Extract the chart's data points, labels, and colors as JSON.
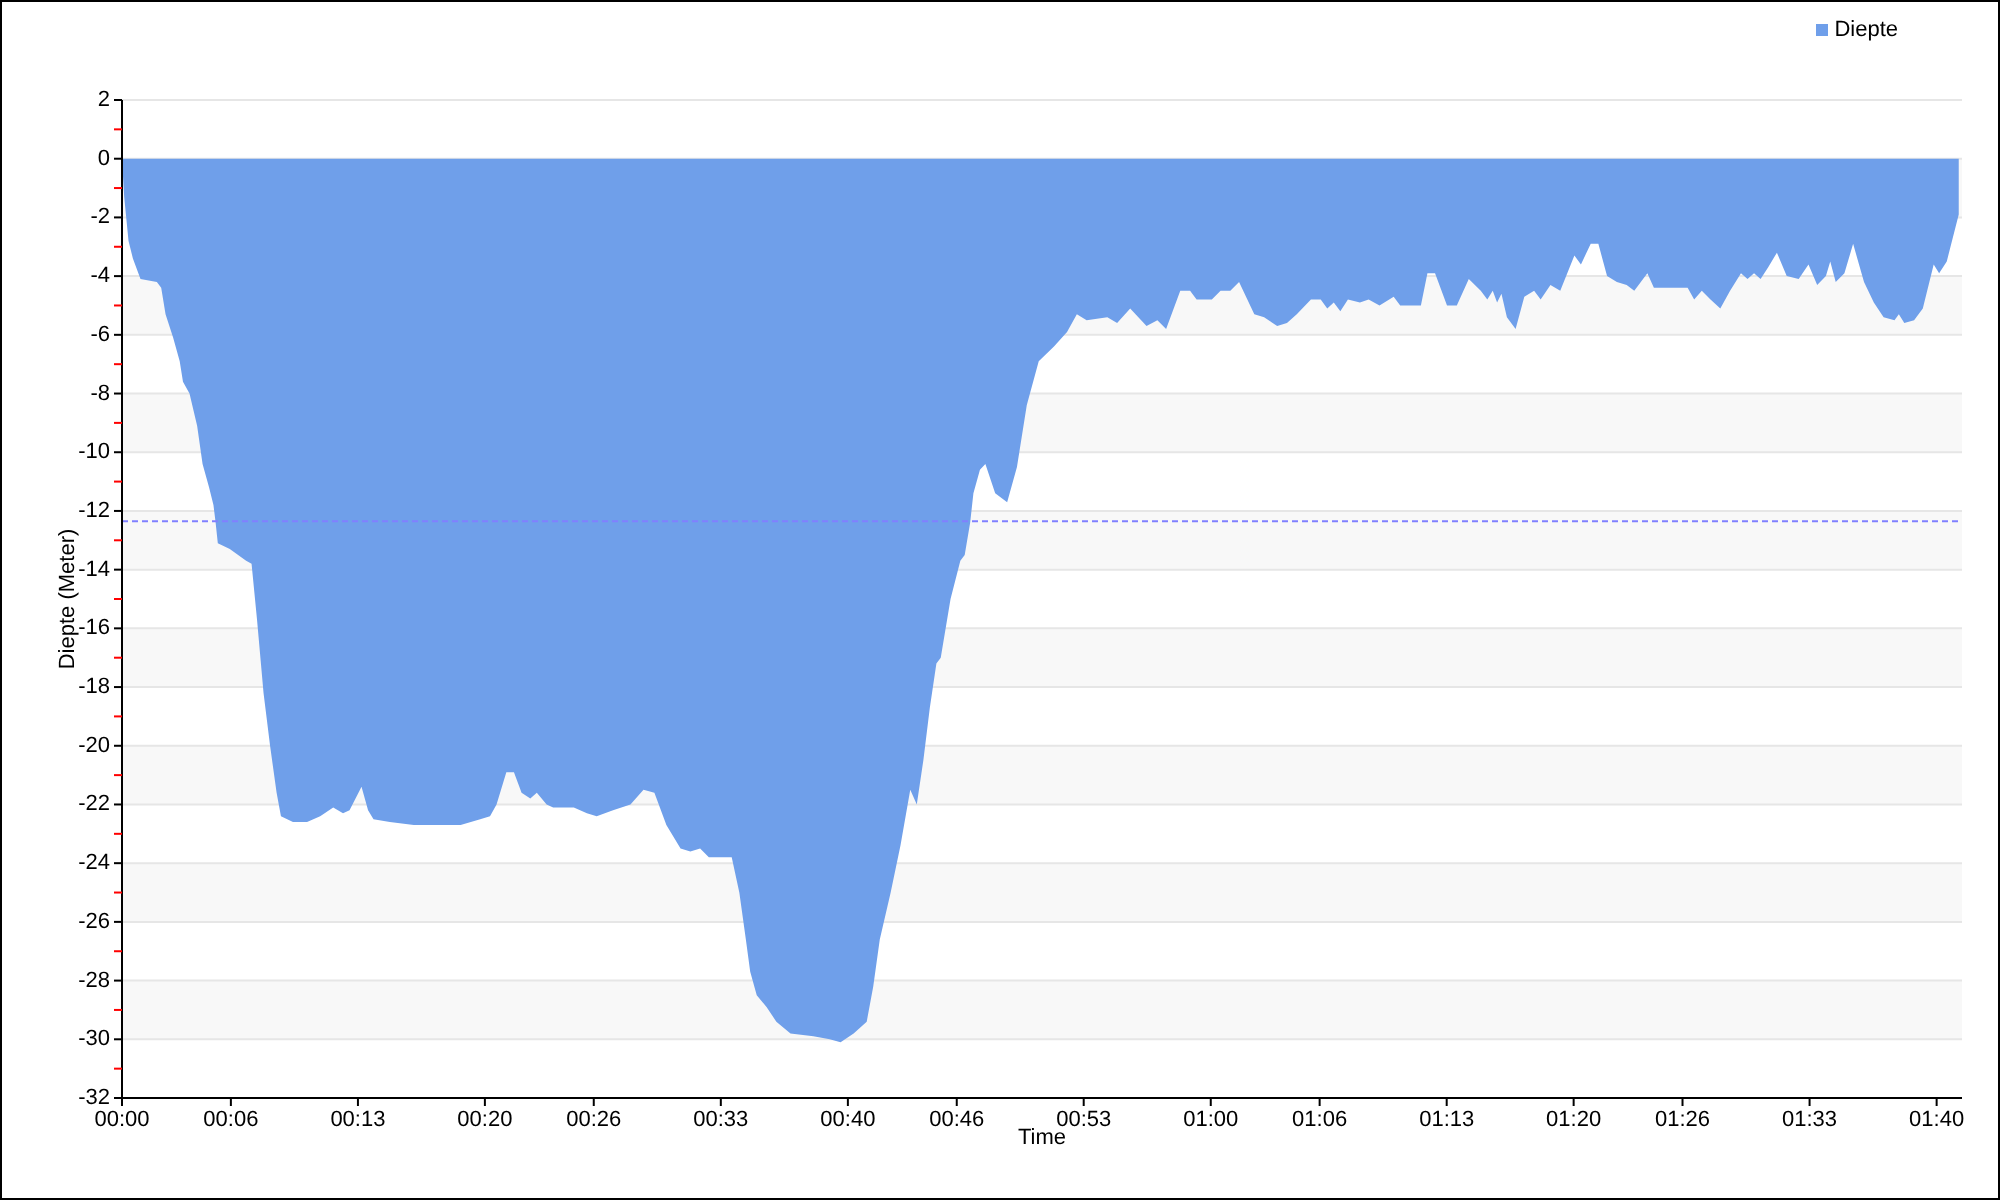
{
  "chart_data": {
    "type": "area",
    "xlabel": "Time",
    "ylabel": "Diepte (Meter)",
    "x": [
      0,
      0.002,
      0.006,
      0.01,
      0.017,
      0.032,
      0.036,
      0.04,
      0.047,
      0.053,
      0.056,
      0.062,
      0.069,
      0.074,
      0.08,
      0.084,
      0.086,
      0.088,
      0.099,
      0.114,
      0.119,
      0.124,
      0.13,
      0.136,
      0.142,
      0.146,
      0.157,
      0.17,
      0.182,
      0.194,
      0.203,
      0.209,
      0.22,
      0.226,
      0.231,
      0.246,
      0.268,
      0.292,
      0.311,
      0.329,
      0.338,
      0.344,
      0.353,
      0.36,
      0.367,
      0.375,
      0.381,
      0.39,
      0.396,
      0.415,
      0.427,
      0.436,
      0.451,
      0.467,
      0.479,
      0.489,
      0.5,
      0.513,
      0.522,
      0.531,
      0.539,
      0.549,
      0.56,
      0.567,
      0.573,
      0.577,
      0.583,
      0.592,
      0.601,
      0.614,
      0.635,
      0.65,
      0.66,
      0.672,
      0.684,
      0.69,
      0.696,
      0.706,
      0.715,
      0.724,
      0.73,
      0.736,
      0.742,
      0.748,
      0.752,
      0.761,
      0.77,
      0.774,
      0.779,
      0.782,
      0.788,
      0.793,
      0.802,
      0.813,
      0.822,
      0.831,
      0.842,
      0.856,
      0.868,
      0.877,
      0.886,
      0.905,
      0.914,
      0.926,
      0.941,
      0.951,
      0.959,
      0.972,
      0.981,
      0.987,
      1.001,
      1.009,
      1.018,
      1.026,
      1.04,
      1.049,
      1.061,
      1.07,
      1.079,
      1.092,
      1.101,
      1.107,
      1.113,
      1.119,
      1.126,
      1.137,
      1.145,
      1.155,
      1.168,
      1.174,
      1.193,
      1.199,
      1.206,
      1.217,
      1.226,
      1.237,
      1.248,
      1.254,
      1.259,
      1.263,
      1.267,
      1.272,
      1.28,
      1.288,
      1.297,
      1.303,
      1.312,
      1.321,
      1.334,
      1.34,
      1.349,
      1.356,
      1.364,
      1.373,
      1.382,
      1.389,
      1.395,
      1.401,
      1.407,
      1.419,
      1.438,
      1.444,
      1.451,
      1.459,
      1.468,
      1.477,
      1.487,
      1.493,
      1.499,
      1.505,
      1.512,
      1.52,
      1.529,
      1.54,
      1.549,
      1.557,
      1.565,
      1.569,
      1.574,
      1.582,
      1.59,
      1.6,
      1.609,
      1.618,
      1.628,
      1.632,
      1.637,
      1.646,
      1.654,
      1.664,
      1.669,
      1.676,
      1.687
    ],
    "series": [
      {
        "name": "Diepte",
        "color": "#6f9fea",
        "values": [
          0,
          -1.3,
          -2.8,
          -3.4,
          -4.1,
          -4.2,
          -4.4,
          -5.3,
          -6.1,
          -6.9,
          -7.6,
          -8.0,
          -9.1,
          -10.4,
          -11.2,
          -11.8,
          -12.4,
          -13.1,
          -13.3,
          -13.7,
          -13.8,
          -15.7,
          -18.2,
          -20.0,
          -21.6,
          -22.4,
          -22.6,
          -22.6,
          -22.4,
          -22.1,
          -22.3,
          -22.2,
          -21.4,
          -22.2,
          -22.5,
          -22.6,
          -22.7,
          -22.7,
          -22.7,
          -22.5,
          -22.4,
          -22.0,
          -20.9,
          -20.9,
          -21.6,
          -21.8,
          -21.6,
          -22.0,
          -22.1,
          -22.1,
          -22.3,
          -22.4,
          -22.2,
          -22.0,
          -21.5,
          -21.6,
          -22.7,
          -23.5,
          -23.6,
          -23.5,
          -23.8,
          -23.8,
          -23.8,
          -25.0,
          -26.6,
          -27.7,
          -28.5,
          -28.9,
          -29.4,
          -29.8,
          -29.9,
          -30.0,
          -30.1,
          -29.8,
          -29.4,
          -28.2,
          -26.6,
          -25.0,
          -23.4,
          -21.5,
          -22.0,
          -20.5,
          -18.7,
          -17.2,
          -17.0,
          -15.0,
          -13.7,
          -13.5,
          -12.4,
          -11.4,
          -10.6,
          -10.4,
          -11.4,
          -11.7,
          -10.5,
          -8.4,
          -6.9,
          -6.4,
          -5.9,
          -5.3,
          -5.5,
          -5.4,
          -5.6,
          -5.1,
          -5.7,
          -5.5,
          -5.8,
          -4.5,
          -4.5,
          -4.8,
          -4.8,
          -4.5,
          -4.5,
          -4.2,
          -5.3,
          -5.4,
          -5.7,
          -5.6,
          -5.3,
          -4.8,
          -4.8,
          -5.1,
          -4.9,
          -5.2,
          -4.8,
          -4.9,
          -4.8,
          -5.0,
          -4.7,
          -5.0,
          -5.0,
          -3.9,
          -3.9,
          -5.0,
          -5.0,
          -4.1,
          -4.5,
          -4.8,
          -4.5,
          -4.9,
          -4.6,
          -5.4,
          -5.8,
          -4.7,
          -4.5,
          -4.8,
          -4.3,
          -4.5,
          -3.3,
          -3.6,
          -2.9,
          -2.9,
          -4.0,
          -4.2,
          -4.3,
          -4.5,
          -4.2,
          -3.9,
          -4.4,
          -4.4,
          -4.4,
          -4.8,
          -4.5,
          -4.8,
          -5.1,
          -4.5,
          -3.9,
          -4.1,
          -3.9,
          -4.1,
          -3.7,
          -3.2,
          -4.0,
          -4.1,
          -3.6,
          -4.3,
          -4.0,
          -3.5,
          -4.2,
          -3.9,
          -2.9,
          -4.2,
          -4.9,
          -5.4,
          -5.5,
          -5.3,
          -5.6,
          -5.5,
          -5.1,
          -3.6,
          -3.9,
          -3.5,
          -1.9
        ]
      }
    ],
    "xlim": [
      0,
      1.69
    ],
    "xticks": [
      {
        "value": 0,
        "label": "00:00"
      },
      {
        "value": 0.1,
        "label": "00:06"
      },
      {
        "value": 0.2167,
        "label": "00:13"
      },
      {
        "value": 0.3333,
        "label": "00:20"
      },
      {
        "value": 0.4333,
        "label": "00:26"
      },
      {
        "value": 0.55,
        "label": "00:33"
      },
      {
        "value": 0.6667,
        "label": "00:40"
      },
      {
        "value": 0.7667,
        "label": "00:46"
      },
      {
        "value": 0.8833,
        "label": "00:53"
      },
      {
        "value": 1,
        "label": "01:00"
      },
      {
        "value": 1.1,
        "label": "01:06"
      },
      {
        "value": 1.2167,
        "label": "01:13"
      },
      {
        "value": 1.3333,
        "label": "01:20"
      },
      {
        "value": 1.4333,
        "label": "01:26"
      },
      {
        "value": 1.55,
        "label": "01:33"
      },
      {
        "value": 1.6667,
        "label": "01:40"
      }
    ],
    "ylim": [
      -32,
      2
    ],
    "yticks": [
      2,
      {
        "value": 1,
        "label": null
      },
      0,
      {
        "value": -1,
        "label": null
      },
      -2,
      {
        "value": -3,
        "label": null
      },
      -4,
      {
        "value": -5,
        "label": null
      },
      -6,
      {
        "value": -7,
        "label": null
      },
      -8,
      {
        "value": -9,
        "label": null
      },
      -10,
      {
        "value": -11,
        "label": null
      },
      -12,
      {
        "value": -13,
        "label": null
      },
      -14,
      {
        "value": -15,
        "label": null
      },
      -16,
      {
        "value": -17,
        "label": null
      },
      -18,
      {
        "value": -19,
        "label": null
      },
      -20,
      {
        "value": -21,
        "label": null
      },
      -22,
      {
        "value": -23,
        "label": null
      },
      -24,
      {
        "value": -25,
        "label": null
      },
      -26,
      {
        "value": -27,
        "label": null
      },
      -28,
      {
        "value": -29,
        "label": null
      },
      -30,
      {
        "value": -31,
        "label": null
      },
      -32
    ],
    "ref_lines": [
      {
        "axis": "y",
        "value": -12.35,
        "color": "#8080ff",
        "line_style": "dashed"
      }
    ],
    "grid": "y",
    "legend": "top right"
  }
}
